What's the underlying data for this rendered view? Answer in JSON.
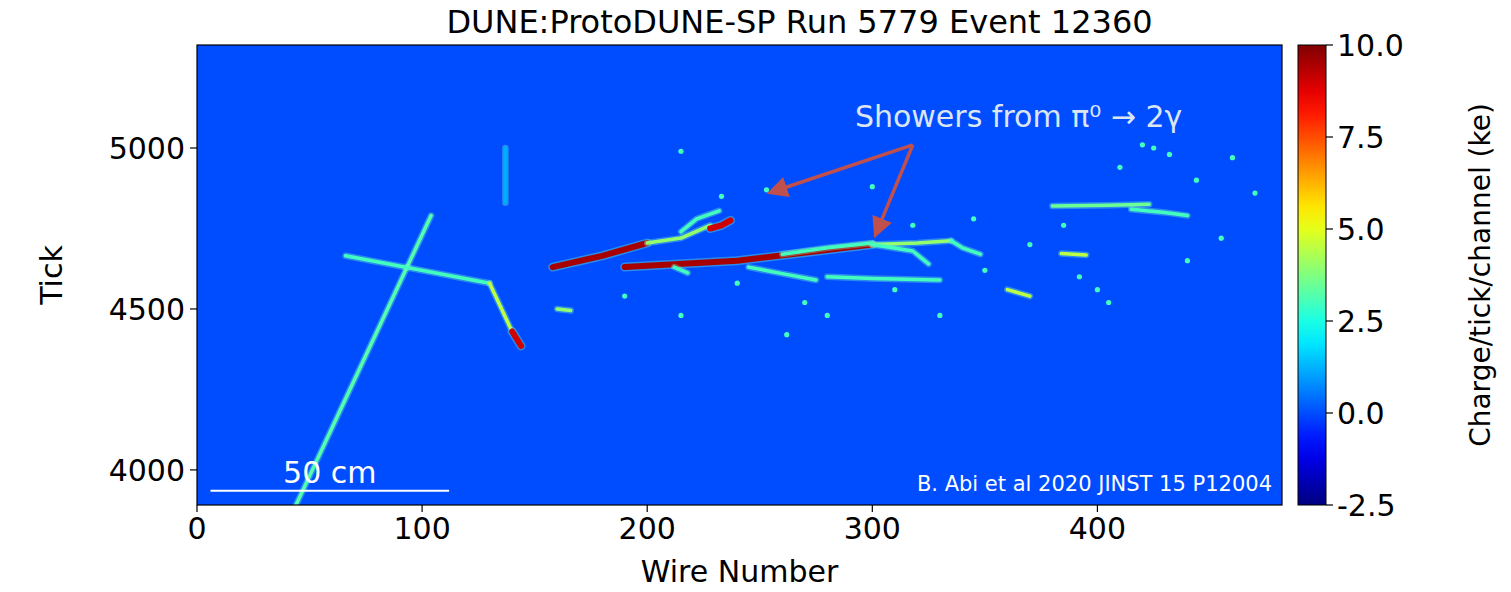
{
  "chart_data": {
    "type": "event_display",
    "title": "DUNE:ProtoDUNE-SP Run 5779 Event 12360",
    "x_label": "Wire Number",
    "y_label": "Tick",
    "xlim": [
      0,
      482
    ],
    "ylim": [
      3891,
      5320
    ],
    "xticks": [
      0,
      100,
      200,
      300,
      400
    ],
    "yticks": [
      4000,
      4500,
      5000
    ],
    "background_charge": 0,
    "colorbar": {
      "range": [
        -2.5,
        10
      ],
      "ticks": [
        -2.5,
        {
          "value": 0,
          "label": "0.0"
        },
        2.5,
        {
          "value": 5,
          "label": "5.0"
        },
        7.5,
        {
          "value": 10,
          "label": "10.0"
        }
      ],
      "label": "Charge/tick/channel (ke)"
    },
    "annotation": "Showers from π⁰ → 2γ",
    "citation": "B. Abi et al 2020 JINST 15 P12004",
    "scale_bar": {
      "label": "50 cm",
      "x": [
        6,
        112
      ],
      "y": 3935
    },
    "tracks": [
      {
        "x": [
          44,
          104
        ],
        "y": [
          3891,
          4790
        ],
        "charge": 3.2
      },
      {
        "x": [
          66,
          130
        ],
        "y": [
          4665,
          4580
        ],
        "charge": 3.0
      },
      {
        "x": [
          130,
          140
        ],
        "y": [
          4580,
          4430
        ],
        "charge": 4.5
      },
      {
        "x": [
          140,
          144
        ],
        "y": [
          4430,
          4385
        ],
        "charge": 9.0
      },
      {
        "x": [
          158,
          180,
          200
        ],
        "y": [
          4630,
          4665,
          4705
        ],
        "charge": 9.5
      },
      {
        "x": [
          200,
          215,
          228
        ],
        "y": [
          4705,
          4720,
          4760
        ],
        "charge": 4.0
      },
      {
        "x": [
          228,
          233,
          237
        ],
        "y": [
          4750,
          4760,
          4775
        ],
        "charge": 9.0
      },
      {
        "x": [
          190,
          240,
          300
        ],
        "y": [
          4630,
          4650,
          4700
        ],
        "charge": 9.5
      },
      {
        "x": [
          300,
          320,
          335
        ],
        "y": [
          4700,
          4705,
          4712
        ],
        "charge": 4.0
      },
      {
        "x": [
          232,
          222,
          215
        ],
        "y": [
          4805,
          4780,
          4740
        ],
        "charge": 3.0
      },
      {
        "x": [
          245,
          260,
          275
        ],
        "y": [
          4630,
          4610,
          4590
        ],
        "charge": 3.0
      },
      {
        "x": [
          300,
          318,
          325
        ],
        "y": [
          4700,
          4680,
          4640
        ],
        "charge": 3.0
      },
      {
        "x": [
          280,
          300,
          330
        ],
        "y": [
          4600,
          4595,
          4590
        ],
        "charge": 3.0
      },
      {
        "x": [
          335,
          340,
          348
        ],
        "y": [
          4712,
          4690,
          4670
        ],
        "charge": 3.0
      },
      {
        "x": [
          380,
          405,
          423
        ],
        "y": [
          4820,
          4822,
          4825
        ],
        "charge": 3.5
      },
      {
        "x": [
          415,
          430,
          440
        ],
        "y": [
          4810,
          4800,
          4790
        ],
        "charge": 3.0
      },
      {
        "x": [
          360,
          370
        ],
        "y": [
          4560,
          4540
        ],
        "charge": 4.5
      },
      {
        "x": [
          384,
          395
        ],
        "y": [
          4672,
          4668
        ],
        "charge": 4.5
      },
      {
        "x": [
          137,
          137
        ],
        "y": [
          4830,
          5000
        ],
        "charge": 1.2
      },
      {
        "x": [
          260,
          280,
          300
        ],
        "y": [
          4670,
          4690,
          4705
        ],
        "charge": 3.0
      },
      {
        "x": [
          212,
          218
        ],
        "y": [
          4630,
          4612
        ],
        "charge": 3.0
      },
      {
        "x": [
          160,
          166
        ],
        "y": [
          4500,
          4495
        ],
        "charge": 4.0
      }
    ],
    "hits": {
      "x": [
        233,
        253,
        300,
        318,
        345,
        370,
        392,
        400,
        410,
        420,
        425,
        432,
        444,
        460,
        470,
        280,
        262,
        215,
        190,
        215,
        330,
        350,
        385,
        405,
        440,
        455,
        240,
        270,
        310
      ],
      "y": [
        4850,
        4870,
        4880,
        4760,
        4780,
        4700,
        4600,
        4560,
        4940,
        5010,
        5000,
        4980,
        4900,
        4970,
        4860,
        4480,
        4420,
        4480,
        4540,
        4990,
        4480,
        4620,
        4760,
        4520,
        4650,
        4720,
        4580,
        4520,
        4560
      ],
      "charge": 3.0
    }
  }
}
